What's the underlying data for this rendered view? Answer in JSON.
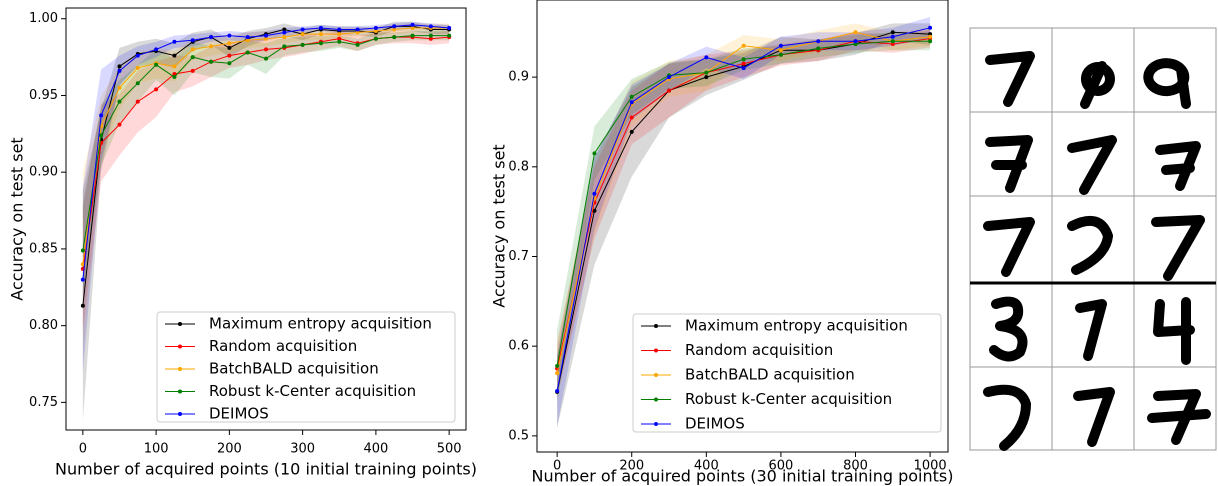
{
  "chart_data": [
    {
      "type": "line",
      "x_label": "Number of acquired points (10 initial training points)",
      "y_label": "Accuracy on test set",
      "x": [
        0,
        25,
        50,
        75,
        100,
        125,
        150,
        175,
        200,
        225,
        250,
        275,
        300,
        325,
        350,
        375,
        400,
        425,
        450,
        475,
        500
      ],
      "xlim": [
        -23,
        523
      ],
      "ylim": [
        0.732,
        1.007
      ],
      "xticks": [
        0,
        100,
        200,
        300,
        400,
        500
      ],
      "yticks": [
        0.75,
        {
          "value": 0.8,
          "label": "0.80"
        },
        0.85,
        {
          "value": 0.9,
          "label": "0.90"
        },
        0.95,
        {
          "value": 1,
          "label": "1.00"
        }
      ],
      "legend": "lower right",
      "series": [
        {
          "name": "Maximum entropy acquisition",
          "color": "#000000",
          "values": [
            0.813,
            0.921,
            0.969,
            0.977,
            0.979,
            0.976,
            0.985,
            0.988,
            0.981,
            0.987,
            0.99,
            0.993,
            0.99,
            0.993,
            0.992,
            0.992,
            0.991,
            0.995,
            0.995,
            0.993,
            0.993
          ],
          "spread": [
            0.075,
            0.02,
            0.012,
            0.008,
            0.008,
            0.008,
            0.006,
            0.005,
            0.006,
            0.005,
            0.004,
            0.004,
            0.004,
            0.003,
            0.003,
            0.003,
            0.003,
            0.003,
            0.003,
            0.003,
            0.003
          ]
        },
        {
          "name": "Random acquisition",
          "color": "#ff0000",
          "values": [
            0.837,
            0.919,
            0.931,
            0.946,
            0.954,
            0.964,
            0.966,
            0.972,
            0.976,
            0.978,
            0.98,
            0.981,
            0.983,
            0.985,
            0.987,
            0.984,
            0.987,
            0.988,
            0.988,
            0.987,
            0.988
          ],
          "spread": [
            0.04,
            0.025,
            0.02,
            0.02,
            0.018,
            0.012,
            0.01,
            0.01,
            0.008,
            0.008,
            0.007,
            0.006,
            0.006,
            0.005,
            0.005,
            0.005,
            0.004,
            0.004,
            0.004,
            0.004,
            0.004
          ]
        },
        {
          "name": "BatchBALD acquisition",
          "color": "#ffa500",
          "values": [
            0.84,
            0.93,
            0.955,
            0.968,
            0.971,
            0.969,
            0.98,
            0.982,
            0.984,
            0.986,
            0.987,
            0.988,
            0.99,
            0.99,
            0.99,
            0.991,
            0.992,
            0.993,
            0.994,
            0.994,
            0.994
          ],
          "spread": [
            0.06,
            0.02,
            0.014,
            0.01,
            0.01,
            0.01,
            0.007,
            0.006,
            0.006,
            0.005,
            0.005,
            0.004,
            0.004,
            0.004,
            0.004,
            0.003,
            0.003,
            0.003,
            0.003,
            0.003,
            0.003
          ]
        },
        {
          "name": "Robust k-Center acquisition",
          "color": "#008000",
          "values": [
            0.849,
            0.924,
            0.946,
            0.958,
            0.97,
            0.962,
            0.975,
            0.972,
            0.971,
            0.978,
            0.974,
            0.982,
            0.983,
            0.984,
            0.985,
            0.983,
            0.987,
            0.988,
            0.989,
            0.989,
            0.989
          ],
          "spread": [
            0.03,
            0.02,
            0.014,
            0.012,
            0.01,
            0.012,
            0.01,
            0.01,
            0.01,
            0.008,
            0.01,
            0.006,
            0.005,
            0.005,
            0.004,
            0.004,
            0.004,
            0.003,
            0.003,
            0.003,
            0.003
          ]
        },
        {
          "name": "DEIMOS",
          "color": "#0000ff",
          "values": [
            0.83,
            0.937,
            0.966,
            0.976,
            0.98,
            0.985,
            0.986,
            0.988,
            0.989,
            0.988,
            0.989,
            0.991,
            0.993,
            0.994,
            0.993,
            0.993,
            0.994,
            0.995,
            0.996,
            0.995,
            0.994
          ],
          "spread": [
            0.06,
            0.03,
            0.01,
            0.006,
            0.005,
            0.004,
            0.004,
            0.003,
            0.003,
            0.003,
            0.003,
            0.003,
            0.002,
            0.002,
            0.002,
            0.002,
            0.002,
            0.002,
            0.002,
            0.002,
            0.002
          ]
        }
      ]
    },
    {
      "type": "line",
      "x_label": "Number of acquired points (30 initial training points)",
      "y_label": "Accuracy on test set",
      "x": [
        0,
        100,
        200,
        300,
        400,
        500,
        600,
        700,
        800,
        900,
        1000
      ],
      "xlim": [
        -54,
        1048
      ],
      "ylim": [
        0.482,
        0.986
      ],
      "xticks": [
        0,
        200,
        400,
        600,
        800,
        1000
      ],
      "yticks": [
        0.5,
        0.6,
        0.7,
        0.8,
        0.9
      ],
      "legend": "lower right",
      "series": [
        {
          "name": "Maximum entropy acquisition",
          "color": "#000000",
          "values": [
            0.549,
            0.751,
            0.839,
            0.885,
            0.9,
            0.912,
            0.93,
            0.93,
            0.937,
            0.95,
            0.948
          ],
          "spread": [
            0.04,
            0.06,
            0.05,
            0.03,
            0.02,
            0.015,
            0.015,
            0.012,
            0.012,
            0.01,
            0.012
          ]
        },
        {
          "name": "Random acquisition",
          "color": "#ff0000",
          "values": [
            0.575,
            0.76,
            0.855,
            0.885,
            0.905,
            0.915,
            0.925,
            0.93,
            0.94,
            0.937,
            0.943
          ],
          "spread": [
            0.03,
            0.04,
            0.03,
            0.03,
            0.02,
            0.015,
            0.012,
            0.012,
            0.01,
            0.01,
            0.01
          ]
        },
        {
          "name": "BatchBALD acquisition",
          "color": "#ffa500",
          "values": [
            0.57,
            0.765,
            0.87,
            0.898,
            0.905,
            0.935,
            0.93,
            0.94,
            0.95,
            0.94,
            0.945
          ],
          "spread": [
            0.03,
            0.04,
            0.025,
            0.02,
            0.02,
            0.012,
            0.012,
            0.012,
            0.01,
            0.01,
            0.01
          ]
        },
        {
          "name": "Robust k-Center acquisition",
          "color": "#008000",
          "values": [
            0.578,
            0.815,
            0.878,
            0.902,
            0.905,
            0.92,
            0.925,
            0.932,
            0.937,
            0.94,
            0.94
          ],
          "spread": [
            0.04,
            0.03,
            0.02,
            0.015,
            0.015,
            0.012,
            0.01,
            0.01,
            0.01,
            0.01,
            0.01
          ]
        },
        {
          "name": "DEIMOS",
          "color": "#0000ff",
          "values": [
            0.55,
            0.77,
            0.872,
            0.9,
            0.922,
            0.91,
            0.935,
            0.94,
            0.94,
            0.945,
            0.955
          ],
          "spread": [
            0.04,
            0.04,
            0.02,
            0.015,
            0.012,
            0.012,
            0.01,
            0.01,
            0.01,
            0.01,
            0.012
          ]
        }
      ]
    }
  ]
}
